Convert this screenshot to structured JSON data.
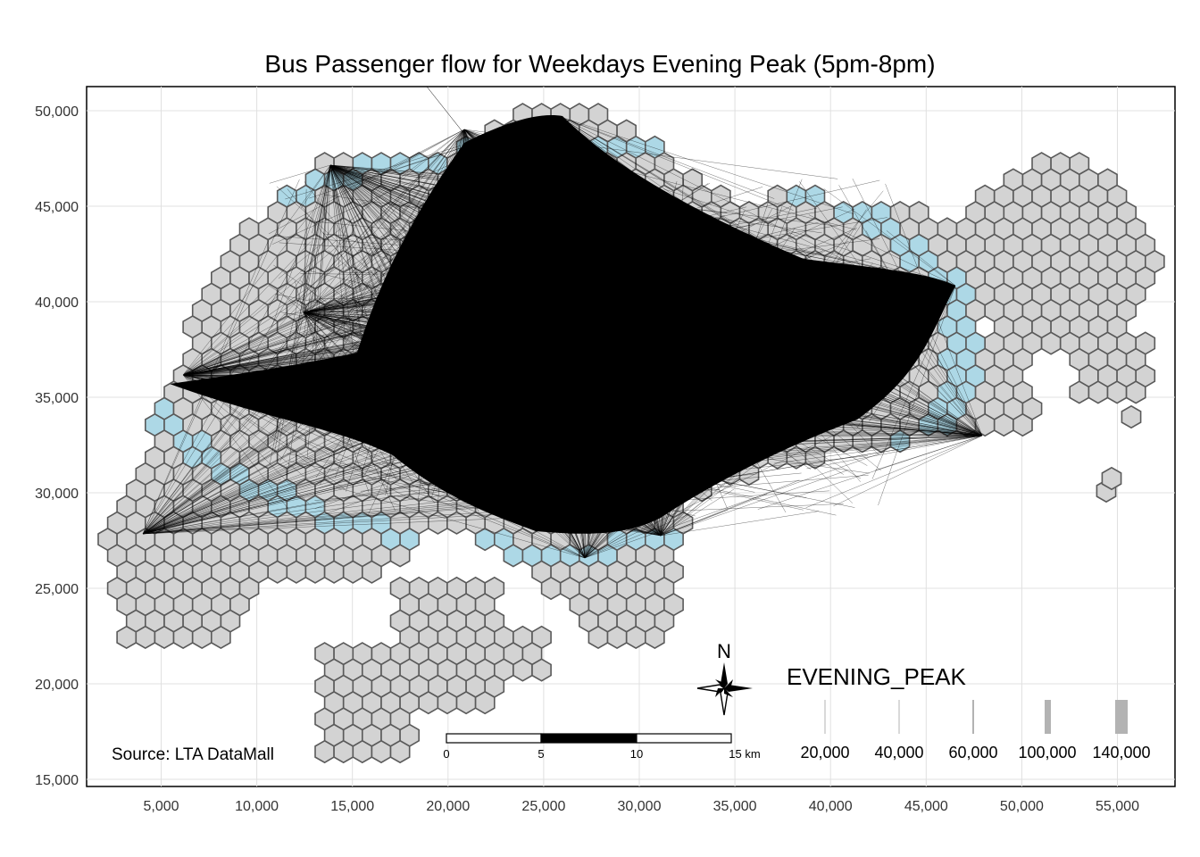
{
  "title": "Bus Passenger flow for Weekdays Evening Peak (5pm-8pm)",
  "source": "Source: LTA DataMall",
  "axes": {
    "y_ticks": [
      "50,000",
      "45,000",
      "40,000",
      "35,000",
      "30,000",
      "25,000",
      "20,000",
      "15,000"
    ],
    "x_ticks": [
      "5,000",
      "10,000",
      "15,000",
      "20,000",
      "25,000",
      "30,000",
      "35,000",
      "40,000",
      "45,000",
      "50,000",
      "55,000"
    ]
  },
  "north_arrow": {
    "label": "N"
  },
  "scale_bar": {
    "labels": [
      "0",
      "5",
      "10",
      "15 km"
    ]
  },
  "legend": {
    "title": "EVENING_PEAK",
    "entries": [
      "20,000",
      "40,000",
      "60,000",
      "100,000",
      "140,000"
    ],
    "color": "#b3b3b3"
  },
  "colors": {
    "hex_fill": "#d3d3d3",
    "hex_active": "#add8e6",
    "flow_lines": "#000000",
    "grid": "#e0e0e0"
  }
}
